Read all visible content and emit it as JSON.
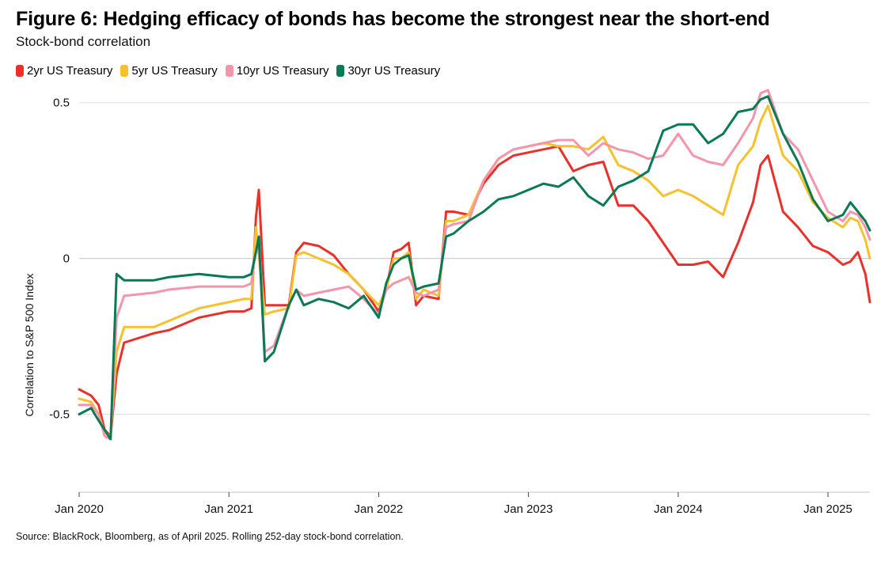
{
  "title": "Figure 6: Hedging efficacy of bonds has become the strongest near the short-end",
  "subtitle": "Stock-bond correlation",
  "source": "Source: BlackRock, Bloomberg, as of April 2025. Rolling 252-day stock-bond correlation.",
  "chart_data": {
    "type": "line",
    "title": "Figure 6: Hedging efficacy of bonds has become the strongest near the short-end",
    "subtitle": "Stock-bond correlation",
    "xlabel": "",
    "ylabel": "Correlation to S&P 500 Index",
    "ylim": [
      -0.75,
      0.55
    ],
    "xlim": [
      2020.0,
      2025.28
    ],
    "yticks": [
      {
        "value": 0.5,
        "label": "0.5"
      },
      {
        "value": 0,
        "label": "0"
      },
      {
        "value": -0.5,
        "label": "-0.5"
      }
    ],
    "xticks": [
      {
        "value": 2020,
        "label": "Jan 2020"
      },
      {
        "value": 2021,
        "label": "Jan 2021"
      },
      {
        "value": 2022,
        "label": "Jan 2022"
      },
      {
        "value": 2023,
        "label": "Jan 2023"
      },
      {
        "value": 2024,
        "label": "Jan 2024"
      },
      {
        "value": 2025,
        "label": "Jan 2025"
      }
    ],
    "legend_position": "top-left",
    "x": [
      2020.0,
      2020.08,
      2020.13,
      2020.17,
      2020.21,
      2020.25,
      2020.3,
      2020.5,
      2020.6,
      2020.8,
      2021.0,
      2021.1,
      2021.15,
      2021.18,
      2021.2,
      2021.24,
      2021.3,
      2021.4,
      2021.45,
      2021.5,
      2021.6,
      2021.7,
      2021.8,
      2021.9,
      2022.0,
      2022.05,
      2022.1,
      2022.15,
      2022.2,
      2022.25,
      2022.3,
      2022.4,
      2022.45,
      2022.5,
      2022.6,
      2022.7,
      2022.8,
      2022.9,
      2023.0,
      2023.1,
      2023.2,
      2023.3,
      2023.4,
      2023.5,
      2023.6,
      2023.7,
      2023.8,
      2023.9,
      2024.0,
      2024.1,
      2024.2,
      2024.3,
      2024.4,
      2024.5,
      2024.55,
      2024.6,
      2024.7,
      2024.8,
      2024.9,
      2025.0,
      2025.1,
      2025.15,
      2025.2,
      2025.25,
      2025.28
    ],
    "series": [
      {
        "name": "2yr US Treasury",
        "color": "#e8312a",
        "values": [
          -0.42,
          -0.44,
          -0.47,
          -0.55,
          -0.57,
          -0.37,
          -0.27,
          -0.24,
          -0.23,
          -0.19,
          -0.17,
          -0.17,
          -0.16,
          0.13,
          0.22,
          -0.15,
          -0.15,
          -0.15,
          0.02,
          0.05,
          0.04,
          0.01,
          -0.05,
          -0.1,
          -0.17,
          -0.1,
          0.02,
          0.03,
          0.05,
          -0.15,
          -0.12,
          -0.13,
          0.15,
          0.15,
          0.14,
          0.24,
          0.3,
          0.33,
          0.34,
          0.35,
          0.36,
          0.28,
          0.3,
          0.31,
          0.17,
          0.17,
          0.12,
          0.05,
          -0.02,
          -0.02,
          -0.01,
          -0.06,
          0.05,
          0.18,
          0.3,
          0.33,
          0.15,
          0.1,
          0.04,
          0.02,
          -0.02,
          -0.01,
          0.02,
          -0.05,
          -0.14
        ]
      },
      {
        "name": "5yr US Treasury",
        "color": "#f7c12d",
        "values": [
          -0.45,
          -0.46,
          -0.5,
          -0.56,
          -0.57,
          -0.3,
          -0.22,
          -0.22,
          -0.2,
          -0.16,
          -0.14,
          -0.13,
          -0.13,
          0.1,
          0.01,
          -0.18,
          -0.17,
          -0.16,
          0.01,
          0.02,
          0.0,
          -0.02,
          -0.05,
          -0.1,
          -0.15,
          -0.1,
          0.0,
          0.0,
          0.02,
          -0.13,
          -0.1,
          -0.12,
          0.12,
          0.12,
          0.14,
          0.25,
          0.32,
          0.35,
          0.36,
          0.37,
          0.36,
          0.36,
          0.35,
          0.39,
          0.3,
          0.28,
          0.25,
          0.2,
          0.22,
          0.2,
          0.17,
          0.14,
          0.3,
          0.36,
          0.44,
          0.49,
          0.33,
          0.28,
          0.18,
          0.13,
          0.1,
          0.13,
          0.12,
          0.06,
          0.0
        ]
      },
      {
        "name": "10yr US Treasury",
        "color": "#f595ac",
        "values": [
          -0.47,
          -0.47,
          -0.5,
          -0.57,
          -0.58,
          -0.19,
          -0.12,
          -0.11,
          -0.1,
          -0.09,
          -0.09,
          -0.09,
          -0.08,
          0.03,
          0.05,
          -0.3,
          -0.28,
          -0.15,
          -0.1,
          -0.12,
          -0.11,
          -0.1,
          -0.09,
          -0.13,
          -0.18,
          -0.1,
          -0.08,
          -0.07,
          -0.06,
          -0.11,
          -0.12,
          -0.1,
          0.1,
          0.11,
          0.12,
          0.25,
          0.32,
          0.35,
          0.36,
          0.37,
          0.38,
          0.38,
          0.33,
          0.37,
          0.35,
          0.34,
          0.32,
          0.33,
          0.4,
          0.33,
          0.31,
          0.3,
          0.37,
          0.45,
          0.53,
          0.54,
          0.4,
          0.35,
          0.25,
          0.15,
          0.12,
          0.15,
          0.14,
          0.1,
          0.06
        ]
      },
      {
        "name": "30yr US Treasury",
        "color": "#0a7a55",
        "values": [
          -0.5,
          -0.48,
          -0.52,
          -0.55,
          -0.58,
          -0.05,
          -0.07,
          -0.07,
          -0.06,
          -0.05,
          -0.06,
          -0.06,
          -0.05,
          0.02,
          0.07,
          -0.33,
          -0.3,
          -0.15,
          -0.1,
          -0.15,
          -0.13,
          -0.14,
          -0.16,
          -0.12,
          -0.19,
          -0.08,
          -0.02,
          0.0,
          0.01,
          -0.1,
          -0.09,
          -0.08,
          0.07,
          0.08,
          0.12,
          0.15,
          0.19,
          0.2,
          0.22,
          0.24,
          0.23,
          0.26,
          0.2,
          0.17,
          0.23,
          0.25,
          0.28,
          0.41,
          0.43,
          0.43,
          0.37,
          0.4,
          0.47,
          0.48,
          0.51,
          0.52,
          0.4,
          0.31,
          0.19,
          0.12,
          0.14,
          0.18,
          0.15,
          0.12,
          0.09
        ]
      }
    ]
  }
}
